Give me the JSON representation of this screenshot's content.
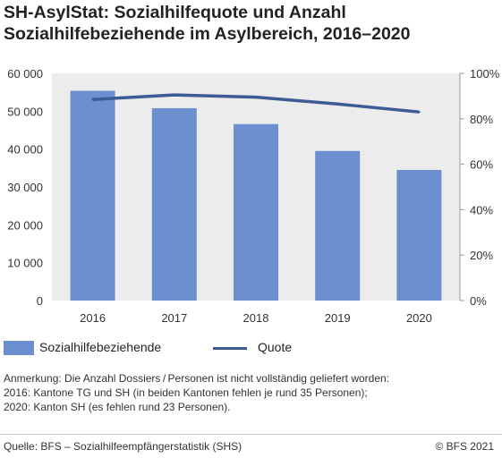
{
  "title": {
    "line1": "SH-AsylStat: Sozialhilfequote und Anzahl",
    "line2": "Sozialhilfebeziehende im Asylbereich, 2016–2020"
  },
  "chart_data": {
    "type": "bar",
    "categories": [
      "2016",
      "2017",
      "2018",
      "2019",
      "2020"
    ],
    "series": [
      {
        "name": "Sozialhilfebeziehende",
        "type": "bar",
        "axis": "left",
        "color": "#6b8fcf",
        "values": [
          55400,
          50800,
          46600,
          39500,
          34500
        ]
      },
      {
        "name": "Quote",
        "type": "line",
        "axis": "right",
        "color": "#3d5b95",
        "values": [
          88.5,
          90.5,
          89.5,
          86.5,
          83.0
        ]
      }
    ],
    "left_axis": {
      "ylim": [
        0,
        60000
      ],
      "ticks": [
        0,
        10000,
        20000,
        30000,
        40000,
        50000,
        60000
      ],
      "tick_labels": [
        "0",
        "10 000",
        "20 000",
        "30 000",
        "40 000",
        "50 000",
        "60 000"
      ]
    },
    "right_axis": {
      "ylim": [
        0,
        100
      ],
      "ticks": [
        0,
        20,
        40,
        60,
        80,
        100
      ],
      "tick_labels": [
        "0%",
        "20%",
        "40%",
        "60%",
        "80%",
        "100%"
      ]
    },
    "grid": false,
    "legend_position": "bottom"
  },
  "legend": {
    "bar_label": "Sozialhilfebeziehende",
    "line_label": "Quote"
  },
  "notes": [
    "Anmerkung: Die Anzahl Dossiers / Personen ist nicht vollständig geliefert worden:",
    "2016: Kantone TG und SH (in beiden Kantonen fehlen je rund 35 Personen);",
    "2020: Kanton SH (es fehlen rund 23 Personen)."
  ],
  "footer": {
    "source": "Quelle: BFS – Sozialhilfeempfängerstatistik (SHS)",
    "copyright": "© BFS 2021"
  }
}
